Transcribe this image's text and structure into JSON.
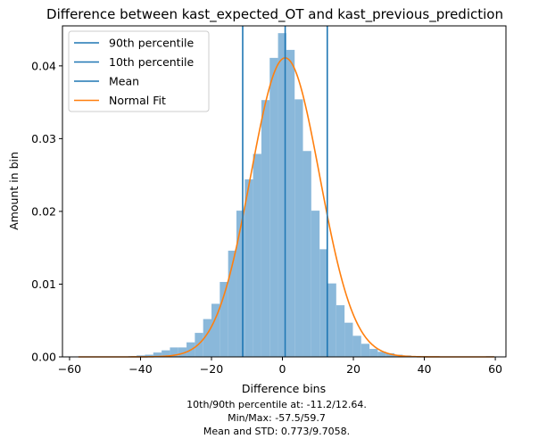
{
  "chart_data": {
    "type": "bar",
    "title": "Difference between kast_expected_OT and kast_previous_prediction",
    "xlabel": "Difference bins",
    "ylabel": "Amount in bin",
    "xlim": [
      -62,
      63
    ],
    "ylim": [
      0,
      0.0455
    ],
    "xticks": [
      -60,
      -40,
      -20,
      0,
      20,
      40,
      60
    ],
    "xtick_labels": [
      "−60",
      "−40",
      "−20",
      "0",
      "20",
      "40",
      "60"
    ],
    "yticks": [
      0.0,
      0.01,
      0.02,
      0.03,
      0.04
    ],
    "ytick_labels": [
      "0.00",
      "0.01",
      "0.02",
      "0.03",
      "0.04"
    ],
    "grid": false,
    "legend_position": "upper-left",
    "bin_width": 2.344,
    "bin_start": -57.5,
    "histogram": [
      0,
      0,
      0,
      0,
      0,
      0,
      0.0001,
      0.0002,
      0.0003,
      0.0006,
      0.0009,
      0.0013,
      0.0013,
      0.002,
      0.0033,
      0.0052,
      0.0073,
      0.0103,
      0.0146,
      0.0201,
      0.0244,
      0.0279,
      0.0353,
      0.0411,
      0.0445,
      0.0422,
      0.0354,
      0.0283,
      0.0201,
      0.0148,
      0.0101,
      0.0071,
      0.0047,
      0.0029,
      0.0018,
      0.0011,
      0.0007,
      0.0005,
      0.0003,
      0.0002,
      0.0001,
      0.0001,
      0,
      0,
      0,
      0,
      0,
      0,
      0,
      0.0001
    ],
    "histogram_color": "#8ab8da",
    "normal_fit": {
      "mean": 0.773,
      "std": 9.7058,
      "x_range": [
        -57.5,
        59.7
      ]
    },
    "vlines": [
      {
        "name": "90th percentile",
        "x": 12.64,
        "color": "#1f77b4"
      },
      {
        "name": "10th percentile",
        "x": -11.2,
        "color": "#1f77b4"
      },
      {
        "name": "Mean",
        "x": 0.773,
        "color": "#1f77b4"
      }
    ],
    "legend": [
      {
        "label": "90th percentile",
        "color": "#1f77b4"
      },
      {
        "label": "10th percentile",
        "color": "#1f77b4"
      },
      {
        "label": "Mean",
        "color": "#1f77b4"
      },
      {
        "label": "Normal Fit",
        "color": "#ff7f0e"
      }
    ],
    "annotations": [
      "10th/90th percentile at: -11.2/12.64.",
      "Min/Max: -57.5/59.7",
      "Mean and STD: 0.773/9.7058."
    ]
  }
}
